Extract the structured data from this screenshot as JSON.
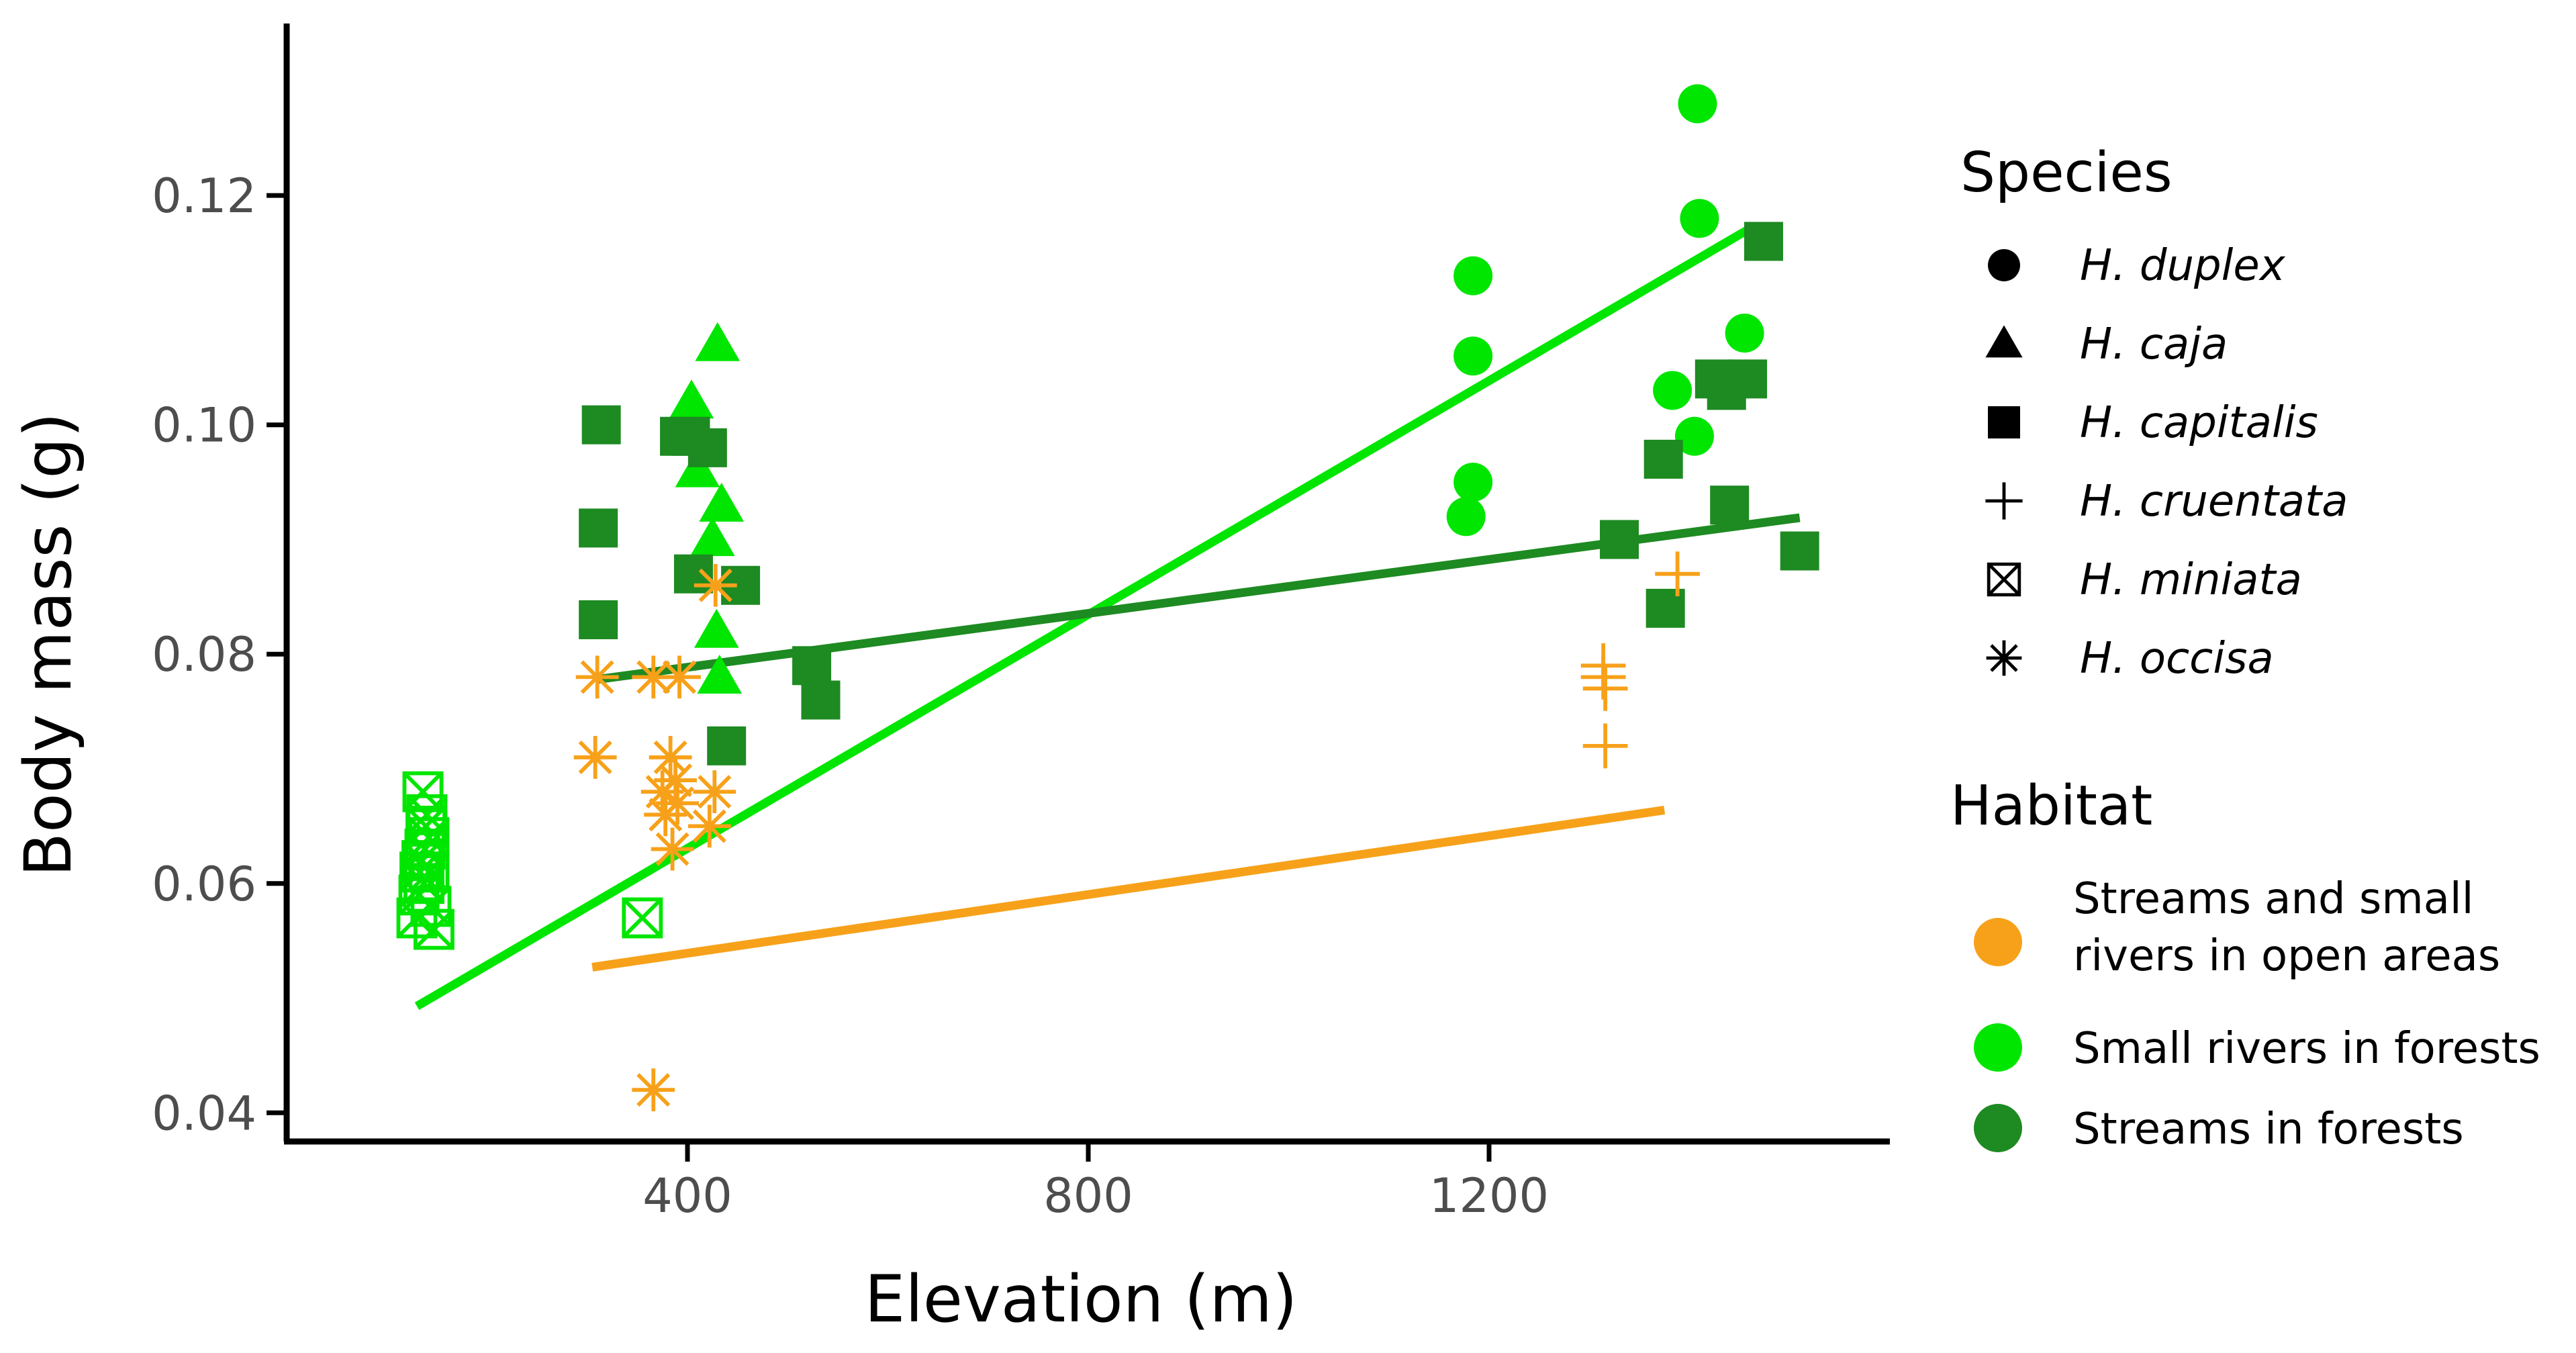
{
  "chart_data": {
    "type": "scatter",
    "xlabel": "Elevation (m)",
    "ylabel": "Body mass (g)",
    "xlim": [
      0,
      1600
    ],
    "ylim": [
      0.0375,
      0.135
    ],
    "xticks": [
      400,
      800,
      1200
    ],
    "xtick_labels": [
      "400",
      "800",
      "1200"
    ],
    "yticks": [
      0.04,
      0.06,
      0.08,
      0.1,
      0.12
    ],
    "ytick_labels": [
      "0.04",
      "0.06",
      "0.08",
      "0.10",
      "0.12"
    ],
    "colors": {
      "open": "#f7a11a",
      "small_rivers": "#00e600",
      "streams": "#1e8a22",
      "axis": "#000000"
    },
    "legend_species": {
      "title": "Species",
      "items": [
        {
          "shape": "circle",
          "label": "H. duplex"
        },
        {
          "shape": "triangle",
          "label": "H. caja"
        },
        {
          "shape": "square",
          "label": "H. capitalis"
        },
        {
          "shape": "plus",
          "label": "H. cruentata"
        },
        {
          "shape": "boxx",
          "label": "H. miniata"
        },
        {
          "shape": "asterisk",
          "label": "H. occisa"
        }
      ]
    },
    "legend_habitat": {
      "title": "Habitat",
      "items": [
        {
          "habitat": "open",
          "lines": [
            "Streams and small",
            "rivers in open areas"
          ]
        },
        {
          "habitat": "small_rivers",
          "lines": [
            "Small rivers in forests"
          ]
        },
        {
          "habitat": "streams",
          "lines": [
            "Streams in forests"
          ]
        }
      ]
    },
    "series": [
      {
        "name": "H. duplex",
        "shape": "circle",
        "habitat": "small_rivers",
        "points": [
          [
            1177,
            0.092
          ],
          [
            1184,
            0.095
          ],
          [
            1184,
            0.106
          ],
          [
            1184,
            0.113
          ],
          [
            1383,
            0.103
          ],
          [
            1405,
            0.099
          ],
          [
            1410,
            0.118
          ],
          [
            1408,
            0.128
          ],
          [
            1455,
            0.108
          ]
        ]
      },
      {
        "name": "H. caja",
        "shape": "triangle",
        "habitat": "small_rivers",
        "points": [
          [
            404,
            0.102
          ],
          [
            410,
            0.096
          ],
          [
            430,
            0.107
          ],
          [
            434,
            0.093
          ],
          [
            425,
            0.09
          ],
          [
            429,
            0.082
          ],
          [
            432,
            0.078
          ],
          [
            412,
            0.099
          ]
        ]
      },
      {
        "name": "H. capitalis",
        "shape": "square",
        "habitat": "streams",
        "points": [
          [
            314,
            0.1
          ],
          [
            311,
            0.091
          ],
          [
            311,
            0.083
          ],
          [
            392,
            0.099
          ],
          [
            403,
            0.099
          ],
          [
            420,
            0.098
          ],
          [
            406,
            0.087
          ],
          [
            453,
            0.086
          ],
          [
            439,
            0.072
          ],
          [
            524,
            0.079
          ],
          [
            533,
            0.076
          ],
          [
            1330,
            0.09
          ],
          [
            1374,
            0.097
          ],
          [
            1376,
            0.084
          ],
          [
            1425,
            0.104
          ],
          [
            1437,
            0.103
          ],
          [
            1440,
            0.093
          ],
          [
            1458,
            0.104
          ],
          [
            1474,
            0.116
          ],
          [
            1510,
            0.089
          ]
        ]
      },
      {
        "name": "H. cruentata",
        "shape": "plus",
        "habitat": "open",
        "points": [
          [
            1314,
            0.079
          ],
          [
            1316,
            0.077
          ],
          [
            1314,
            0.078
          ],
          [
            1316,
            0.072
          ],
          [
            1388,
            0.087
          ]
        ]
      },
      {
        "name": "H. miniata",
        "shape": "boxx",
        "habitat": "small_rivers",
        "points": [
          [
            136,
            0.068
          ],
          [
            140,
            0.066
          ],
          [
            142,
            0.064
          ],
          [
            138,
            0.063
          ],
          [
            135,
            0.062
          ],
          [
            142,
            0.061
          ],
          [
            137,
            0.06
          ],
          [
            132,
            0.059
          ],
          [
            144,
            0.058
          ],
          [
            130,
            0.057
          ],
          [
            147,
            0.056
          ],
          [
            139,
            0.065
          ],
          [
            133,
            0.061
          ],
          [
            355,
            0.057
          ]
        ]
      },
      {
        "name": "H. occisa",
        "shape": "asterisk",
        "habitat": "open",
        "points": [
          [
            310,
            0.078
          ],
          [
            308,
            0.071
          ],
          [
            366,
            0.078
          ],
          [
            392,
            0.078
          ],
          [
            383,
            0.071
          ],
          [
            388,
            0.069
          ],
          [
            375,
            0.068
          ],
          [
            390,
            0.067
          ],
          [
            378,
            0.066
          ],
          [
            385,
            0.063
          ],
          [
            427,
            0.068
          ],
          [
            422,
            0.065
          ],
          [
            428,
            0.086
          ],
          [
            366,
            0.042
          ]
        ]
      }
    ],
    "trendlines": [
      {
        "habitat": "small_rivers",
        "x": [
          130,
          1460
        ],
        "y": [
          0.0493,
          0.1171
        ]
      },
      {
        "habitat": "streams",
        "x": [
          310,
          1510
        ],
        "y": [
          0.0778,
          0.0919
        ]
      },
      {
        "habitat": "open",
        "x": [
          305,
          1375
        ],
        "y": [
          0.0527,
          0.0664
        ]
      }
    ]
  }
}
